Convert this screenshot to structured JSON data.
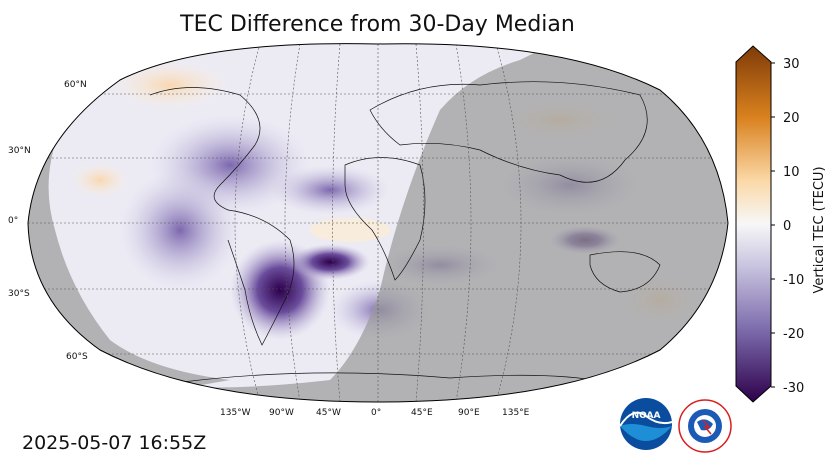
{
  "title": "TEC Difference from 30-Day Median",
  "timestamp": "2025-05-07 16:55Z",
  "colorbar": {
    "label": "Vertical TEC (TECU)",
    "min": -30,
    "max": 30,
    "ticks": [
      "30",
      "20",
      "10",
      "0",
      "-10",
      "-20",
      "-30"
    ]
  },
  "lat_labels": [
    "60°N",
    "30°N",
    "0°",
    "30°S",
    "60°S"
  ],
  "lon_labels": [
    "135°W",
    "90°W",
    "45°W",
    "0°",
    "45°E",
    "90°E",
    "135°E"
  ],
  "logos": {
    "noaa": "NOAA",
    "nws": "NATIONAL WEATHER SERVICE"
  },
  "colors": {
    "positive_max": "#7f3b08",
    "positive_mid": "#f1a340",
    "neutral": "#f7f7f7",
    "negative_mid": "#998ec3",
    "negative_max": "#2d004b",
    "night_shade": "#9b9b9b"
  }
}
